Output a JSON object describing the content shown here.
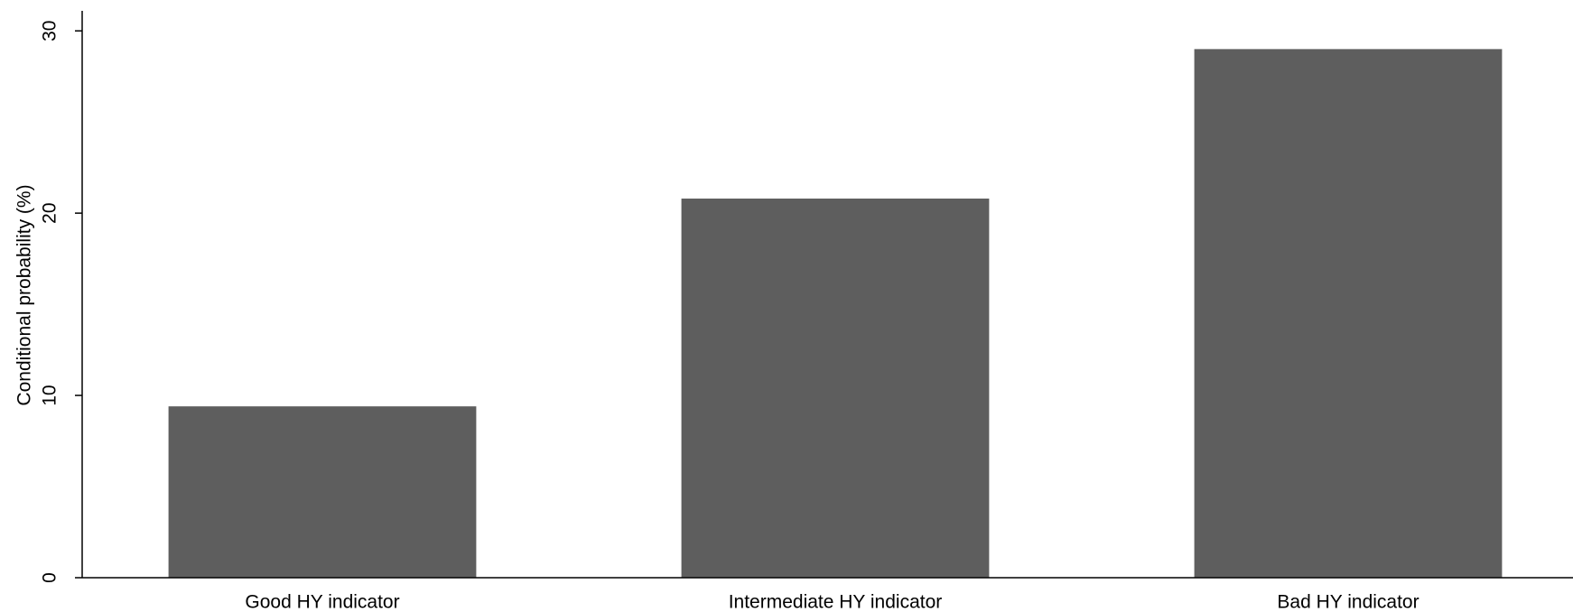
{
  "chart_data": {
    "type": "bar",
    "y_label": "Conditional probability (%)",
    "categories": [
      "Good HY indicator",
      "Intermediate HY indicator",
      "Bad HY indicator"
    ],
    "values": [
      9.4,
      20.8,
      29.0
    ],
    "color": "#5e5e5e",
    "ylim": [
      0,
      31
    ],
    "yticks": [
      0,
      10,
      20,
      30
    ],
    "grid": false
  }
}
